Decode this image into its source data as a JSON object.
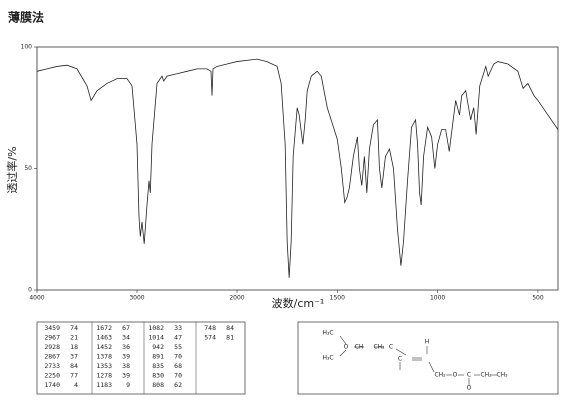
{
  "title": "薄膜法",
  "chart_data": {
    "type": "line",
    "xlabel": "波数/cm⁻¹",
    "ylabel": "透过率/%",
    "color": "#222222",
    "xlim": [
      4000,
      400
    ],
    "x_scale_change": 2000,
    "xticks": [
      4000,
      3000,
      2000,
      1500,
      1000,
      500
    ],
    "ylim": [
      0,
      100
    ],
    "yticks": [
      0,
      50,
      100
    ],
    "x": [
      4000,
      3900,
      3800,
      3700,
      3600,
      3500,
      3459,
      3400,
      3300,
      3200,
      3100,
      3050,
      3000,
      2980,
      2967,
      2950,
      2928,
      2900,
      2880,
      2867,
      2850,
      2800,
      2750,
      2733,
      2700,
      2600,
      2500,
      2400,
      2300,
      2260,
      2250,
      2240,
      2200,
      2100,
      2000,
      1900,
      1850,
      1800,
      1780,
      1760,
      1750,
      1740,
      1730,
      1720,
      1700,
      1690,
      1672,
      1660,
      1650,
      1630,
      1600,
      1580,
      1550,
      1500,
      1480,
      1463,
      1452,
      1440,
      1420,
      1400,
      1390,
      1378,
      1365,
      1353,
      1340,
      1320,
      1300,
      1290,
      1278,
      1260,
      1240,
      1220,
      1200,
      1183,
      1170,
      1150,
      1130,
      1110,
      1100,
      1090,
      1082,
      1070,
      1050,
      1030,
      1014,
      1000,
      980,
      960,
      942,
      930,
      910,
      891,
      880,
      860,
      835,
      830,
      820,
      808,
      790,
      760,
      748,
      720,
      700,
      650,
      600,
      574,
      550,
      520,
      500,
      450,
      400
    ],
    "values": [
      90,
      91,
      92,
      92.5,
      91,
      84,
      78,
      82,
      85,
      87,
      87,
      84,
      60,
      30,
      22,
      28,
      19,
      35,
      45,
      40,
      60,
      85,
      88,
      86,
      88,
      89,
      90,
      91,
      91,
      90,
      80,
      91,
      92,
      93,
      94,
      95,
      94,
      92,
      85,
      60,
      20,
      5,
      20,
      55,
      75,
      72,
      60,
      70,
      82,
      88,
      90,
      88,
      75,
      62,
      50,
      36,
      38,
      42,
      55,
      63,
      50,
      43,
      55,
      40,
      58,
      68,
      70,
      50,
      42,
      55,
      58,
      50,
      25,
      10,
      20,
      45,
      67,
      70,
      60,
      40,
      35,
      55,
      67,
      63,
      50,
      60,
      66,
      66,
      57,
      65,
      78,
      72,
      80,
      82,
      70,
      72,
      75,
      64,
      84,
      92,
      88,
      93,
      94,
      93,
      90,
      83,
      85,
      80,
      78,
      72,
      66
    ]
  },
  "peaks": [
    [
      3459,
      74
    ],
    [
      2967,
      21
    ],
    [
      2928,
      18
    ],
    [
      2867,
      37
    ],
    [
      2733,
      84
    ],
    [
      2250,
      77
    ],
    [
      1740,
      4
    ],
    [
      1672,
      67
    ],
    [
      1463,
      34
    ],
    [
      1452,
      36
    ],
    [
      1378,
      39
    ],
    [
      1353,
      38
    ],
    [
      1278,
      39
    ],
    [
      1183,
      9
    ],
    [
      1082,
      33
    ],
    [
      1014,
      47
    ],
    [
      942,
      55
    ],
    [
      891,
      70
    ],
    [
      835,
      68
    ],
    [
      830,
      70
    ],
    [
      808,
      62
    ],
    [
      748,
      84
    ],
    [
      574,
      81
    ]
  ],
  "structure": {
    "labels": [
      "H₃C",
      "O",
      "CH",
      "CH₂",
      "H₃C",
      "C",
      "H",
      "C",
      "CH₂",
      "O",
      "C",
      "CH₂",
      "CH₃",
      "O"
    ]
  }
}
